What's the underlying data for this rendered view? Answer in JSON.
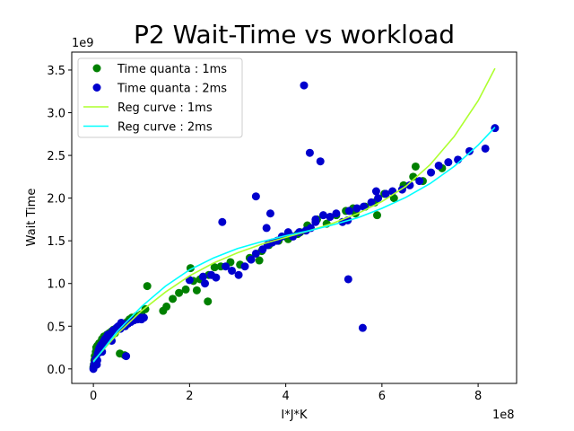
{
  "chart_data": {
    "type": "scatter",
    "title": "P2 Wait-Time vs workload",
    "xlabel": "I*J*K",
    "ylabel": "Wait Time",
    "x_offset_label": "1e8",
    "y_offset_label": "1e9",
    "xlim": [
      -0.45,
      8.8
    ],
    "ylim": [
      -0.17,
      3.71
    ],
    "x_ticks": [
      0,
      2,
      4,
      6,
      8
    ],
    "y_ticks": [
      0.0,
      0.5,
      1.0,
      1.5,
      2.0,
      2.5,
      3.0,
      3.5
    ],
    "x_tick_labels": [
      "0",
      "2",
      "4",
      "6",
      "8"
    ],
    "y_tick_labels": [
      "0.0",
      "0.5",
      "1.0",
      "1.5",
      "2.0",
      "2.5",
      "3.0",
      "3.5"
    ],
    "grid": false,
    "legend_position": "upper-left",
    "colors": {
      "scatter_1ms": "#008000",
      "scatter_2ms": "#0000cd",
      "reg_1ms": "#adff2f",
      "reg_2ms": "#00ffff"
    },
    "series": [
      {
        "name": "Time quanta : 1ms",
        "kind": "scatter",
        "color": "#008000",
        "x": [
          0.0,
          0.01,
          0.02,
          0.03,
          0.05,
          0.06,
          0.08,
          0.1,
          0.12,
          0.15,
          0.18,
          0.2,
          0.22,
          0.25,
          0.28,
          0.3,
          0.33,
          0.35,
          0.38,
          0.4,
          0.42,
          0.45,
          0.48,
          0.5,
          0.55,
          0.6,
          0.65,
          0.7,
          0.75,
          0.8,
          0.9,
          1.0,
          0.55,
          0.65,
          1.08,
          1.45,
          1.52,
          1.65,
          1.78,
          1.92,
          2.02,
          2.15,
          2.22,
          2.38,
          2.52,
          2.65,
          2.85,
          3.05,
          3.25,
          3.45,
          3.65,
          3.85,
          4.05,
          4.25,
          4.45,
          4.65,
          4.85,
          5.05,
          5.25,
          5.45,
          5.65,
          5.85,
          6.05,
          6.25,
          6.45,
          6.65,
          6.85,
          2.4,
          3.5,
          4.3,
          5.4,
          5.9,
          6.7,
          7.25,
          1.12,
          2.08
        ],
        "y": [
          0.02,
          0.05,
          0.1,
          0.15,
          0.2,
          0.25,
          0.27,
          0.22,
          0.3,
          0.28,
          0.35,
          0.3,
          0.38,
          0.33,
          0.4,
          0.36,
          0.42,
          0.38,
          0.44,
          0.4,
          0.46,
          0.42,
          0.45,
          0.48,
          0.5,
          0.5,
          0.52,
          0.55,
          0.58,
          0.6,
          0.62,
          0.64,
          0.18,
          0.16,
          0.7,
          0.68,
          0.73,
          0.82,
          0.89,
          0.93,
          1.18,
          0.92,
          1.05,
          0.79,
          1.19,
          1.2,
          1.25,
          1.22,
          1.3,
          1.27,
          1.45,
          1.5,
          1.52,
          1.58,
          1.68,
          1.75,
          1.7,
          1.8,
          1.85,
          1.82,
          1.9,
          1.95,
          2.05,
          2.0,
          2.15,
          2.25,
          2.2,
          1.1,
          1.38,
          1.6,
          1.88,
          1.8,
          2.37,
          2.35,
          0.97,
          1.03
        ]
      },
      {
        "name": "Time quanta : 2ms",
        "kind": "scatter",
        "color": "#0000cd",
        "x": [
          0.0,
          0.01,
          0.02,
          0.04,
          0.05,
          0.07,
          0.09,
          0.11,
          0.13,
          0.16,
          0.19,
          0.21,
          0.24,
          0.27,
          0.3,
          0.34,
          0.37,
          0.41,
          0.44,
          0.48,
          0.52,
          0.56,
          0.61,
          0.66,
          0.72,
          0.78,
          0.85,
          0.92,
          0.98,
          1.05,
          0.08,
          0.18,
          0.38,
          0.58,
          0.68,
          1.0,
          2.0,
          2.28,
          2.32,
          2.45,
          2.55,
          2.68,
          2.75,
          2.88,
          3.02,
          3.15,
          3.28,
          3.38,
          3.52,
          3.62,
          3.72,
          3.82,
          3.92,
          4.05,
          4.15,
          4.28,
          4.42,
          4.52,
          4.62,
          4.78,
          4.92,
          5.05,
          5.18,
          5.32,
          5.48,
          5.62,
          5.78,
          5.92,
          6.08,
          6.22,
          6.42,
          6.58,
          6.78,
          7.02,
          7.18,
          7.38,
          7.58,
          7.82,
          8.35,
          3.38,
          4.38,
          4.5,
          4.72,
          4.62,
          5.29,
          5.6,
          5.88,
          3.6,
          3.68,
          5.3,
          8.15
        ],
        "y": [
          0.0,
          0.03,
          0.06,
          0.1,
          0.12,
          0.05,
          0.18,
          0.22,
          0.25,
          0.28,
          0.3,
          0.32,
          0.35,
          0.37,
          0.4,
          0.38,
          0.42,
          0.45,
          0.44,
          0.48,
          0.5,
          0.47,
          0.52,
          0.5,
          0.53,
          0.55,
          0.57,
          0.58,
          0.6,
          0.6,
          0.1,
          0.2,
          0.33,
          0.54,
          0.15,
          0.58,
          1.04,
          1.08,
          1.0,
          1.1,
          1.07,
          1.72,
          1.2,
          1.15,
          1.1,
          1.2,
          1.28,
          1.35,
          1.4,
          1.45,
          1.48,
          1.5,
          1.55,
          1.6,
          1.55,
          1.6,
          1.62,
          1.65,
          1.72,
          1.8,
          1.78,
          1.82,
          1.72,
          1.85,
          1.88,
          1.9,
          1.95,
          2.0,
          2.05,
          2.08,
          2.1,
          2.15,
          2.2,
          2.3,
          2.38,
          2.42,
          2.45,
          2.55,
          2.82,
          2.02,
          3.32,
          2.53,
          2.43,
          1.75,
          1.74,
          0.48,
          2.08,
          1.65,
          1.82,
          1.05,
          2.58
        ]
      },
      {
        "name": "Reg curve : 1ms",
        "kind": "line",
        "color": "#adff2f",
        "x": [
          0,
          0.5,
          1,
          1.5,
          2,
          2.5,
          3,
          3.5,
          4,
          4.5,
          5,
          5.5,
          6,
          6.5,
          7,
          7.5,
          8,
          8.35
        ],
        "y": [
          0.09,
          0.41,
          0.68,
          0.9,
          1.09,
          1.24,
          1.36,
          1.46,
          1.54,
          1.62,
          1.71,
          1.82,
          1.96,
          2.14,
          2.39,
          2.72,
          3.14,
          3.52
        ]
      },
      {
        "name": "Reg curve : 2ms",
        "kind": "line",
        "color": "#00ffff",
        "x": [
          0,
          0.5,
          1,
          1.5,
          2,
          2.5,
          3,
          3.5,
          4,
          4.5,
          5,
          5.5,
          6,
          6.5,
          7,
          7.5,
          8,
          8.35
        ],
        "y": [
          0.08,
          0.44,
          0.73,
          0.97,
          1.16,
          1.3,
          1.41,
          1.49,
          1.56,
          1.62,
          1.69,
          1.77,
          1.88,
          2.01,
          2.17,
          2.37,
          2.62,
          2.83
        ]
      }
    ]
  }
}
